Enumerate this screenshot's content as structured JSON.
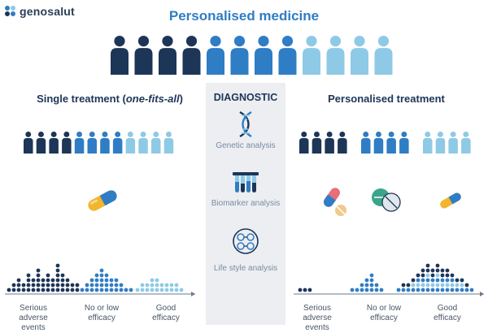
{
  "brand": {
    "name": "genosalut"
  },
  "title": "Personalised medicine",
  "left": {
    "title_prefix": "Single treatment (",
    "title_emph": "one-fits-all",
    "title_suffix": ")"
  },
  "diagnostic": {
    "title": "DIAGNOSTIC",
    "items": [
      {
        "icon": "dna-icon",
        "label": "Genetic analysis"
      },
      {
        "icon": "test-tubes-icon",
        "label": "Biomarker analysis"
      },
      {
        "icon": "lifestyle-icon",
        "label": "Life style analysis"
      }
    ]
  },
  "right": {
    "title": "Personalised treatment"
  },
  "axis_labels": {
    "adverse": [
      "Serious adverse",
      "events"
    ],
    "no_efficacy": [
      "No or low",
      "efficacy"
    ],
    "good": [
      "Good",
      "efficacy"
    ]
  },
  "colors": {
    "dark": "#1d3557",
    "mid": "#2f7dc4",
    "light": "#8ecae6",
    "panel": "#eceef1"
  }
}
